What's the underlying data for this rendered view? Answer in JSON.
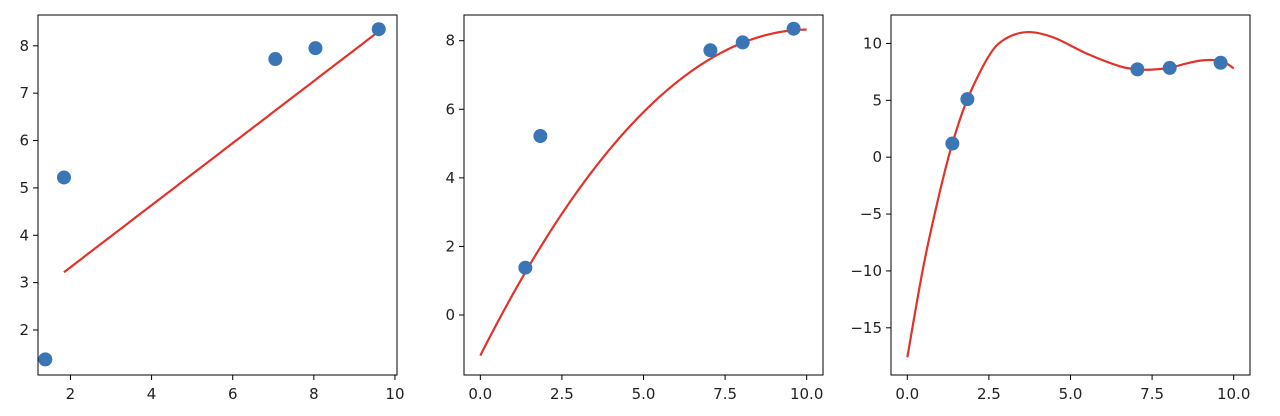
{
  "colors": {
    "marker": "#3a75b5",
    "fit_line": "#e0332a",
    "axis": "#000000",
    "text": "#222222",
    "background": "#ffffff"
  },
  "chart_data": [
    {
      "type": "scatter",
      "title": "",
      "xlabel": "",
      "ylabel": "",
      "grid": false,
      "xlim": [
        1.2,
        10.05
      ],
      "ylim": [
        1.05,
        8.65
      ],
      "xticks": [
        2,
        4,
        6,
        8,
        10
      ],
      "xtick_labels": [
        "2",
        "4",
        "6",
        "8",
        "10"
      ],
      "yticks": [
        2,
        3,
        4,
        5,
        6,
        7,
        8
      ],
      "ytick_labels": [
        "2",
        "3",
        "4",
        "5",
        "6",
        "7",
        "8"
      ],
      "points": {
        "x": [
          1.38,
          1.84,
          7.05,
          8.04,
          9.6
        ],
        "y": [
          1.38,
          5.22,
          7.72,
          7.95,
          8.35
        ]
      },
      "fit": {
        "degree": 1,
        "domain": [
          1.84,
          9.6
        ],
        "coefficients": [
          0.6552,
          2.0139
        ]
      }
    },
    {
      "type": "scatter",
      "title": "",
      "xlabel": "",
      "ylabel": "",
      "grid": false,
      "xlim": [
        -0.5,
        10.5
      ],
      "ylim": [
        -1.75,
        8.75
      ],
      "xticks": [
        0,
        2.5,
        5,
        7.5,
        10
      ],
      "xtick_labels": [
        "0.0",
        "2.5",
        "5.0",
        "7.5",
        "10.0"
      ],
      "yticks": [
        0,
        2,
        4,
        6,
        8
      ],
      "ytick_labels": [
        "0",
        "2",
        "4",
        "6",
        "8"
      ],
      "points": {
        "x": [
          1.38,
          1.84,
          7.05,
          8.04,
          9.6
        ],
        "y": [
          1.38,
          5.22,
          7.72,
          7.95,
          8.35
        ]
      },
      "fit": {
        "degree": 2,
        "domain": [
          0,
          10
        ],
        "coefficients": [
          -0.0939,
          1.8901,
          -1.1853
        ]
      }
    },
    {
      "type": "scatter",
      "title": "",
      "xlabel": "",
      "ylabel": "",
      "grid": false,
      "xlim": [
        -0.5,
        10.5
      ],
      "ylim": [
        -19.15,
        12.5
      ],
      "xticks": [
        0,
        2.5,
        5,
        7.5,
        10
      ],
      "xtick_labels": [
        "0.0",
        "2.5",
        "5.0",
        "7.5",
        "10.0"
      ],
      "yticks": [
        -15,
        -10,
        -5,
        0,
        5,
        10
      ],
      "ytick_labels": [
        "−15",
        "−10",
        "−5",
        "0",
        "5",
        "10"
      ],
      "points": {
        "x": [
          1.38,
          1.84,
          7.05,
          8.04,
          9.6
        ],
        "y": [
          1.2,
          5.1,
          7.72,
          7.85,
          8.3
        ]
      },
      "fit": {
        "degree": "smooth",
        "domain": [
          0,
          10
        ],
        "curve": {
          "x": [
            0,
            0.5,
            1,
            1.38,
            1.84,
            2.5,
            3,
            3.7,
            4.5,
            5.5,
            6.5,
            7.05,
            7.5,
            8.04,
            8.5,
            9,
            9.5,
            9.8,
            10
          ],
          "y": [
            -17.6,
            -9.5,
            -3.0,
            1.2,
            5.1,
            8.9,
            10.4,
            11.0,
            10.5,
            9.1,
            8.0,
            7.72,
            7.7,
            7.85,
            8.2,
            8.5,
            8.5,
            8.2,
            7.8
          ]
        }
      }
    }
  ]
}
